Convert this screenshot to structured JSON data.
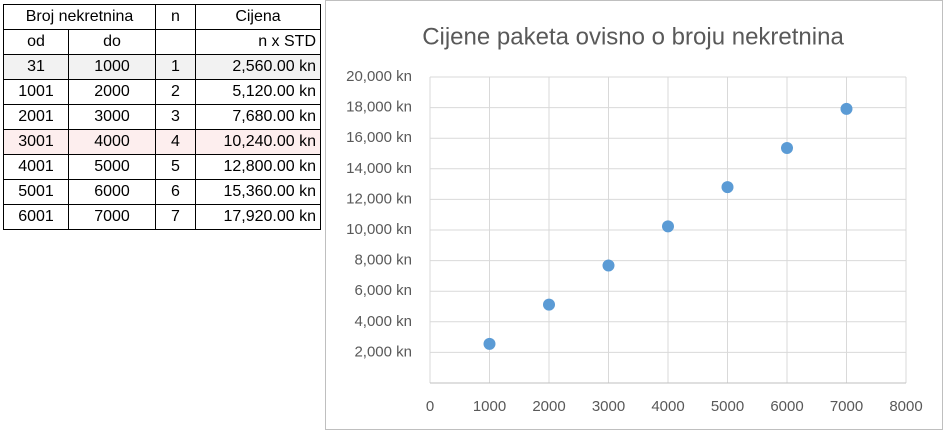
{
  "table": {
    "header": [
      "Broj nekretnina",
      "n",
      "Cijena"
    ],
    "subheader": [
      "od",
      "do",
      "n x STD"
    ],
    "rows": [
      [
        "31",
        "1000",
        "1",
        "2,560.00 kn"
      ],
      [
        "1001",
        "2000",
        "2",
        "5,120.00 kn"
      ],
      [
        "2001",
        "3000",
        "3",
        "7,680.00 kn"
      ],
      [
        "3001",
        "4000",
        "4",
        "10,240.00 kn"
      ],
      [
        "4001",
        "5000",
        "5",
        "12,800.00 kn"
      ],
      [
        "5001",
        "6000",
        "6",
        "15,360.00 kn"
      ],
      [
        "6001",
        "7000",
        "7",
        "17,920.00 kn"
      ]
    ]
  },
  "chart_data": {
    "type": "scatter",
    "title": "Cijene paketa ovisno o broju nekretnina",
    "x": [
      1000,
      2000,
      3000,
      4000,
      5000,
      6000,
      7000
    ],
    "values": [
      2560,
      5120,
      7680,
      10240,
      12800,
      15360,
      17920
    ],
    "color": "#5b9bd5",
    "xlim": [
      0,
      8000
    ],
    "xticks": [
      0,
      1000,
      2000,
      3000,
      4000,
      5000,
      6000,
      7000,
      8000
    ],
    "ylim": [
      0,
      20000
    ],
    "yticks": [
      {
        "value": 2000,
        "label": "2,000 kn"
      },
      {
        "value": 4000,
        "label": "4,000 kn"
      },
      {
        "value": 6000,
        "label": "6,000 kn"
      },
      {
        "value": 8000,
        "label": "8,000 kn"
      },
      {
        "value": 10000,
        "label": "10,000 kn"
      },
      {
        "value": 12000,
        "label": "12,000 kn"
      },
      {
        "value": 14000,
        "label": "14,000 kn"
      },
      {
        "value": 16000,
        "label": "16,000 kn"
      },
      {
        "value": 18000,
        "label": "18,000 kn"
      },
      {
        "value": 20000,
        "label": "20,000 kn"
      }
    ],
    "grid": true
  }
}
